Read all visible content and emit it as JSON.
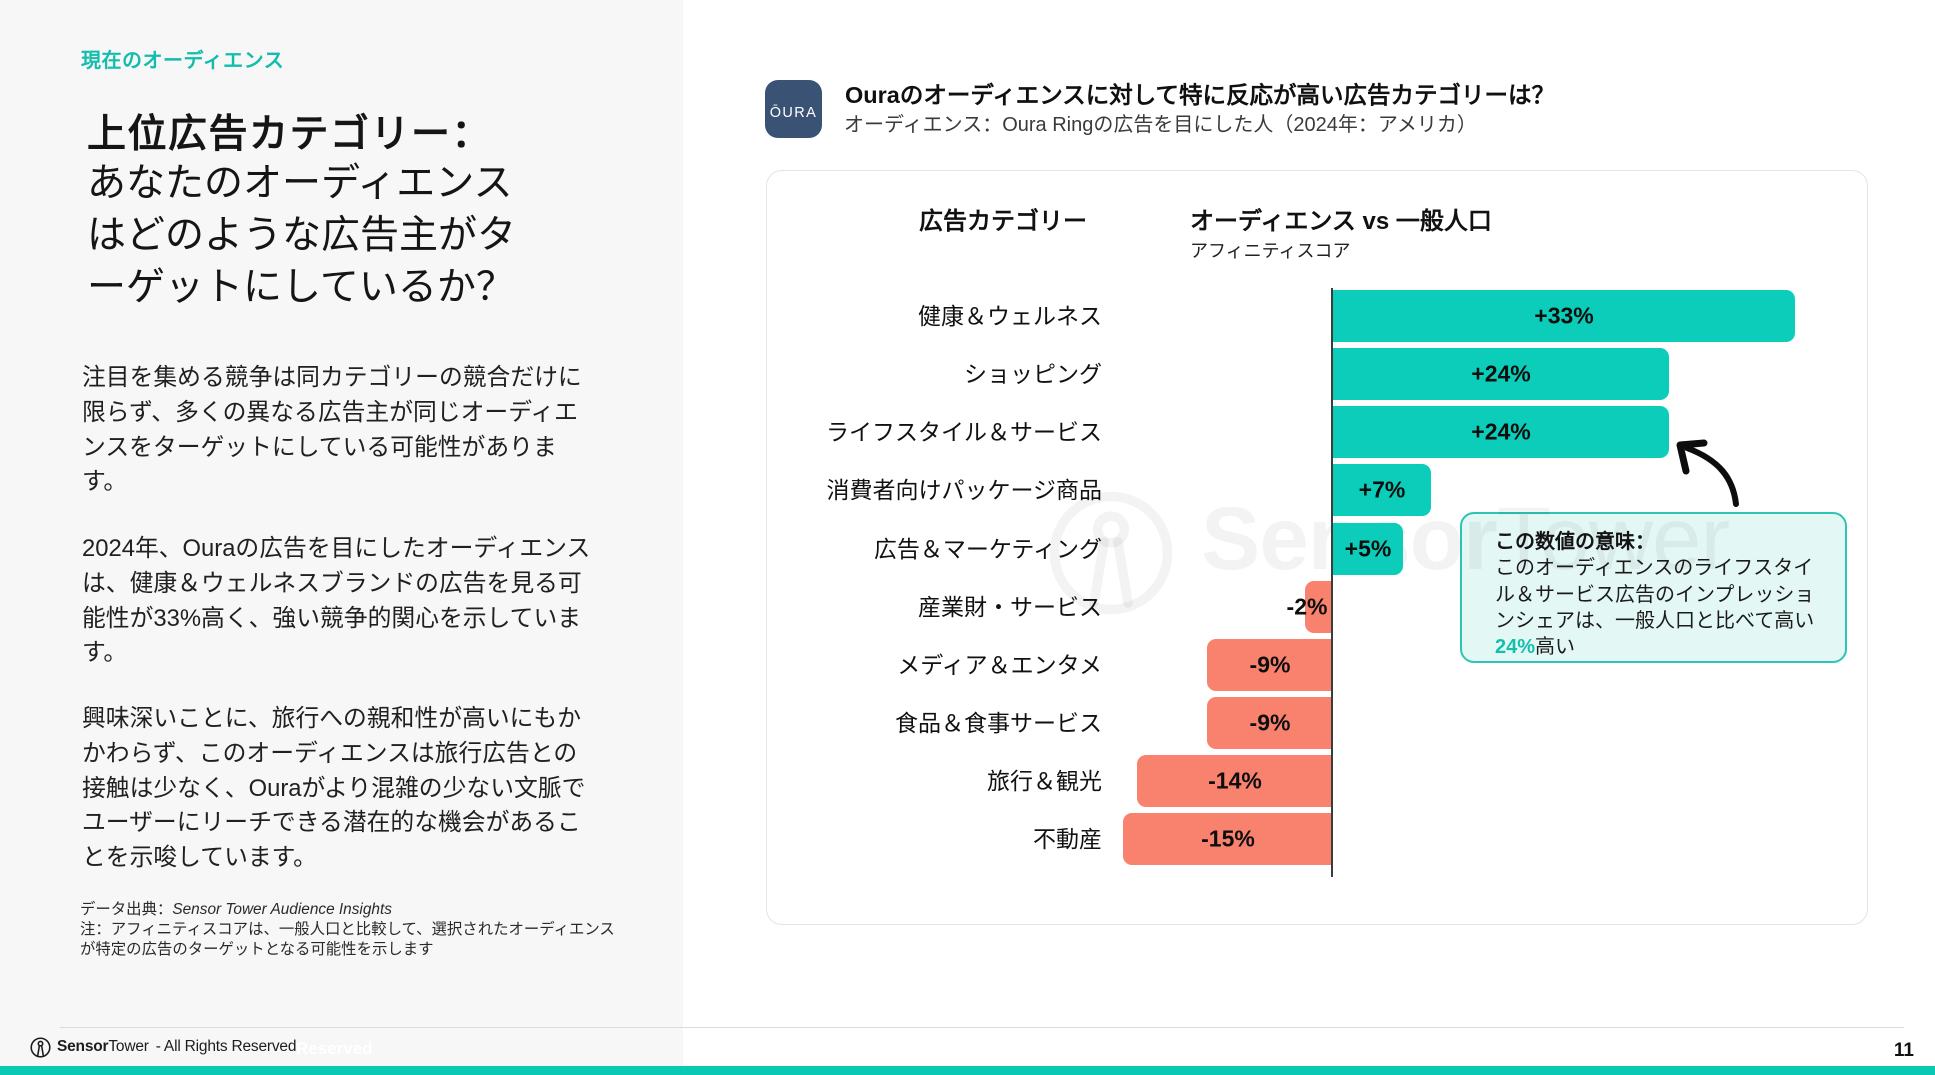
{
  "left_panel": {
    "eyebrow": "現在のオーディエンス",
    "title_bold": "上位広告カテゴリー：",
    "title_rest": "あなたのオーディエンス\nはどのような広告主がタ\nーゲットにしているか？",
    "paragraphs": [
      "注目を集める競争は同カテゴリーの競合だけに\n限らず、多くの異なる広告主が同じオーディエ\nンスをターゲットにしている可能性がありま\nす。",
      "2024年、Ouraの広告を目にしたオーディエンス\nは、健康＆ウェルネスブランドの広告を見る可\n能性が33%高く、強い競争的関心を示していま\nす。",
      "興味深いことに、旅行への親和性が高いにもか\nかわらず、このオーディエンスは旅行広告との\n接触は少なく、Ouraがより混雑の少ない文脈で\nユーザーにリーチできる潜在的な機会があるこ\nとを示唆しています。"
    ],
    "footnote_source_label": "データ出典：",
    "footnote_source": "Sensor Tower Audience Insights",
    "footnote_note": "注：アフィニティスコアは、一般人口と比較して、選択されたオーディエンス\nが特定の広告のターゲットとなる可能性を示します"
  },
  "header": {
    "logo_text": "ŌURA",
    "title": "Ouraのオーディエンスに対して特に反応が高い広告カテゴリーは？",
    "subtitle": "オーディエンス：Oura Ringの広告を目にした人（2024年：アメリカ）"
  },
  "chart_data": {
    "type": "bar",
    "orientation": "horizontal",
    "col_header_category": "広告カテゴリー",
    "col_header_value": "オーディエンス vs 一般人口",
    "col_subheader": "アフィニティスコア",
    "categories": [
      "健康＆ウェルネス",
      "ショッピング",
      "ライフスタイル＆サービス",
      "消費者向けパッケージ商品",
      "広告＆マーケティング",
      "産業財・サービス",
      "メディア＆エンタメ",
      "食品＆食事サービス",
      "旅行＆観光",
      "不動産"
    ],
    "values": [
      33,
      24,
      24,
      7,
      5,
      -2,
      -9,
      -9,
      -14,
      -15
    ],
    "value_labels": [
      "+33%",
      "+24%",
      "+24%",
      "+7%",
      "+5%",
      "-2%",
      "-9%",
      "-9%",
      "-14%",
      "-15%"
    ],
    "positive_color": "#0BCDB9",
    "negative_color": "#F9826E",
    "xlim": [
      -16,
      39
    ],
    "grid": false,
    "legend": false
  },
  "annotation": {
    "title": "この数値の意味：",
    "body": "このオーディエンスのライフスタイ\nル＆サービス広告のインプレッショ\nンシェアは、一般人口と比べて高い",
    "highlight": "24%",
    "suffix": "高い"
  },
  "watermark": {
    "brand_bold": "Sensor",
    "brand_light": "Tower"
  },
  "footer": {
    "brand_bold": "Sensor",
    "brand_light": "Tower",
    "rights": "- All Rights Reserved",
    "ghost": "Reserved",
    "page_number": "11"
  }
}
